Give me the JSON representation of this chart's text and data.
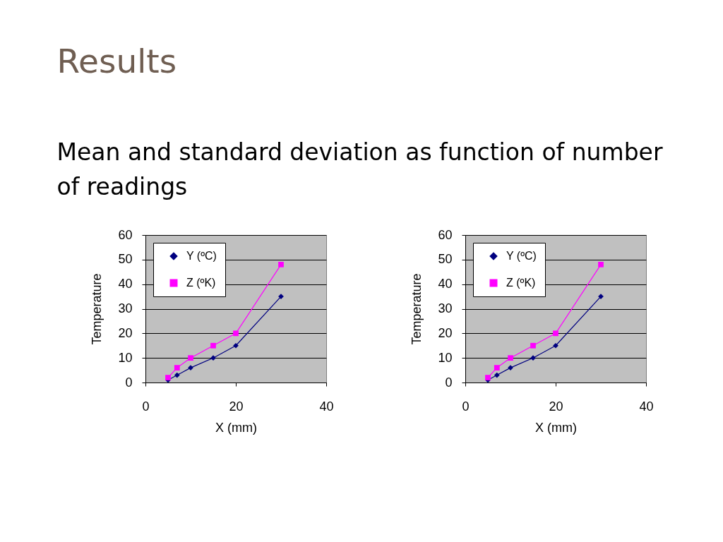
{
  "chart_data": [
    {
      "type": "line",
      "title": "Results",
      "subtitle": "Mean and standard deviation as function of number of readings",
      "xlabel": "X (mm)",
      "ylabel": "Temperature",
      "x": [
        5,
        7,
        10,
        15,
        20,
        30
      ],
      "xlim": [
        0,
        40
      ],
      "xticks": [
        0,
        20,
        40
      ],
      "ylim": [
        0,
        60
      ],
      "yticks": [
        0,
        10,
        20,
        30,
        40,
        50,
        60
      ],
      "grid": "y",
      "legend": "top left",
      "line_style": "solid",
      "series": [
        {
          "name": "Y (ºC)",
          "color": "#000080",
          "marker": "diamond",
          "values": [
            1,
            3,
            6,
            10,
            15,
            35
          ]
        },
        {
          "name": "Z (ºK)",
          "color": "#ff00ff",
          "marker": "square",
          "values": [
            2,
            6,
            10,
            15,
            20,
            48
          ]
        }
      ]
    },
    {
      "type": "line",
      "xlabel": "X (mm)",
      "ylabel": "Temperature",
      "x": [
        5,
        7,
        10,
        15,
        20,
        30
      ],
      "xlim": [
        0,
        40
      ],
      "xticks": [
        0,
        20,
        40
      ],
      "ylim": [
        0,
        60
      ],
      "yticks": [
        0,
        10,
        20,
        30,
        40,
        50,
        60
      ],
      "grid": "y",
      "legend": "top left",
      "line_style": "solid",
      "series": [
        {
          "name": "Y (ºC)",
          "color": "#000080",
          "marker": "diamond",
          "values": [
            1,
            3,
            6,
            10,
            15,
            35
          ]
        },
        {
          "name": "Z (ºK)",
          "color": "#ff00ff",
          "marker": "square",
          "values": [
            2,
            6,
            10,
            15,
            20,
            48
          ]
        }
      ]
    }
  ]
}
